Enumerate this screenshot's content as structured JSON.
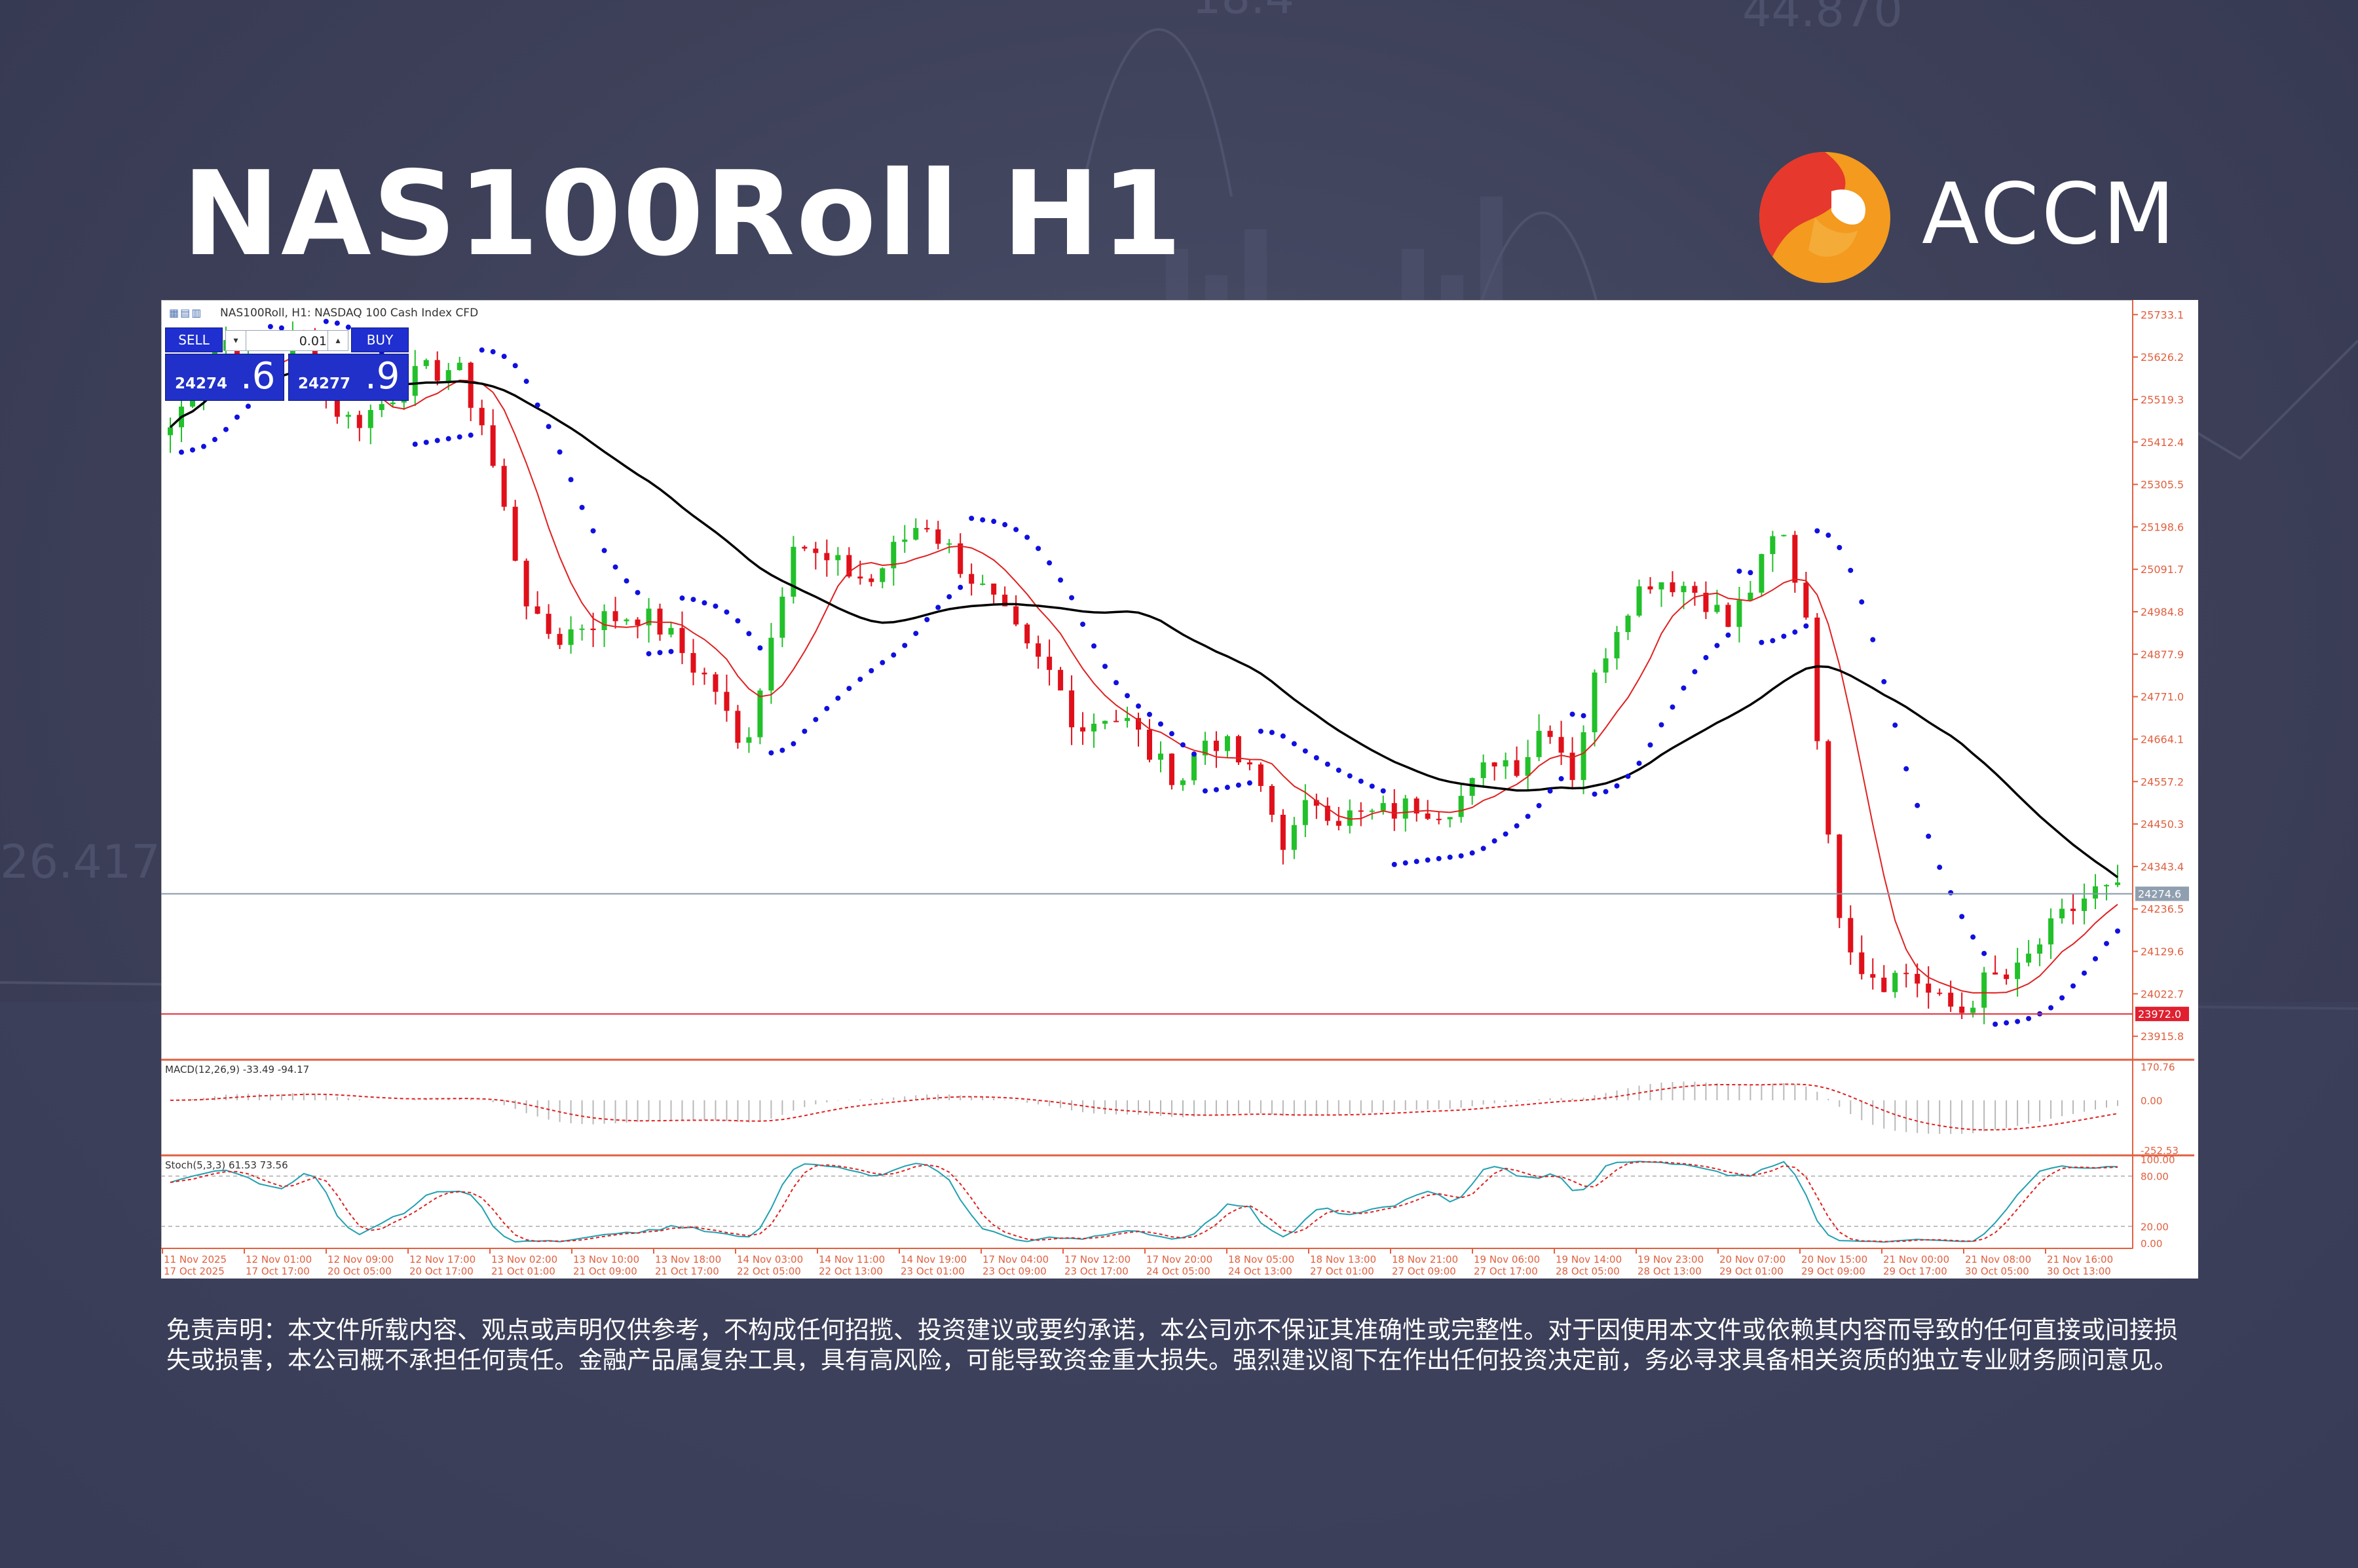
{
  "header": {
    "title": "NAS100Roll H1",
    "brand": "ACCM",
    "brand_colors": {
      "orange": "#f39a1f",
      "red": "#e6382c"
    }
  },
  "window": {
    "title": "NAS100Roll, H1: NASDAQ 100 Cash Index CFD"
  },
  "trade_panel": {
    "sell_label": "SELL",
    "buy_label": "BUY",
    "lot_value": "0.01",
    "sell_price_main": "24274",
    "sell_price_big": ".6",
    "buy_price_main": "24277",
    "buy_price_big": ".9"
  },
  "chart_data": {
    "type": "candlestick",
    "symbol": "NAS100Roll",
    "timeframe": "H1",
    "ylim": [
      23860,
      25760
    ],
    "price_ticks": [
      "25733.1",
      "25626.2",
      "25519.3",
      "25412.4",
      "25305.5",
      "25198.6",
      "25091.7",
      "24984.8",
      "24877.9",
      "24771.0",
      "24664.1",
      "24557.2",
      "24450.3",
      "24343.4",
      "24236.5",
      "24129.6",
      "24022.7",
      "23915.8"
    ],
    "current_price": "24274.6",
    "current_price_value": 24274.6,
    "support_price": "23972.0",
    "support_value": 23972.0,
    "close_path": [
      25450,
      25560,
      25680,
      25600,
      25580,
      25700,
      25520,
      25460,
      25500,
      25560,
      25590,
      25600,
      25460,
      25200,
      24950,
      24920,
      24960,
      24970,
      24980,
      24940,
      24860,
      24790,
      24620,
      24880,
      25180,
      25110,
      25090,
      25060,
      25150,
      25220,
      25140,
      25060,
      24980,
      24880,
      24820,
      24690,
      24730,
      24700,
      24600,
      24570,
      24680,
      24620,
      24540,
      24390,
      24520,
      24470,
      24470,
      24480,
      24500,
      24490,
      24530,
      24620,
      24600,
      24720,
      24580,
      24850,
      25000,
      25070,
      25060,
      25030,
      24950,
      25060,
      25200,
      24980,
      24300,
      24100,
      24060,
      24080,
      24000,
      23980,
      24060,
      24060,
      24150,
      24220,
      24280,
      24274
    ],
    "macd": {
      "label": "MACD(12,26,9) -33.49 -94.17",
      "ticks": [
        "170.76",
        "0.00",
        "-252.53"
      ],
      "ylim": [
        -265,
        185
      ]
    },
    "stoch": {
      "label": "Stoch(5,3,3) 61.53 73.56",
      "ticks": [
        "100.00",
        "80.00",
        "20.00",
        "0.00"
      ],
      "ylim": [
        0,
        100
      ]
    },
    "time_ticks_row1": [
      "11 Nov 2025",
      "12 Nov 01:00",
      "12 Nov 09:00",
      "12 Nov 17:00",
      "13 Nov 02:00",
      "13 Nov 10:00",
      "13 Nov 18:00",
      "14 Nov 03:00",
      "14 Nov 11:00",
      "14 Nov 19:00",
      "17 Nov 04:00",
      "17 Nov 12:00",
      "17 Nov 20:00",
      "18 Nov 05:00",
      "18 Nov 13:00",
      "18 Nov 21:00",
      "19 Nov 06:00",
      "19 Nov 14:00",
      "19 Nov 23:00",
      "20 Nov 07:00",
      "20 Nov 15:00",
      "21 Nov 00:00",
      "21 Nov 08:00",
      "21 Nov 16:00"
    ],
    "time_ticks_row2": [
      "17 Oct 2025",
      "17 Oct 17:00",
      "20 Oct 05:00",
      "20 Oct 17:00",
      "21 Oct 01:00",
      "21 Oct 09:00",
      "21 Oct 17:00",
      "22 Oct 05:00",
      "22 Oct 13:00",
      "23 Oct 01:00",
      "23 Oct 09:00",
      "23 Oct 17:00",
      "24 Oct 05:00",
      "24 Oct 13:00",
      "27 Oct 01:00",
      "27 Oct 09:00",
      "27 Oct 17:00",
      "28 Oct 05:00",
      "28 Oct 13:00",
      "29 Oct 01:00",
      "29 Oct 09:00",
      "29 Oct 17:00",
      "30 Oct 05:00",
      "30 Oct 13:00"
    ],
    "colors": {
      "bull": "#22c02a",
      "bear": "#e0101a",
      "ma_slow": "#000000",
      "ma_fast": "#e02020",
      "psar": "#1010e0",
      "axis": "#e06040"
    }
  },
  "disclaimer": {
    "text": "免责声明：本文件所载内容、观点或声明仅供参考，不构成任何招揽、投资建议或要约承诺，本公司亦不保证其准确性或完整性。对于因使用本文件或依赖其内容而导致的任何直接或间接损失或损害，本公司概不承担任何责任。金融产品属复杂工具，具有高风险，可能导致资金重大损失。强烈建议阁下在作出任何投资决定前，务必寻求具备相关资质的独立专业财务顾问意见。"
  }
}
